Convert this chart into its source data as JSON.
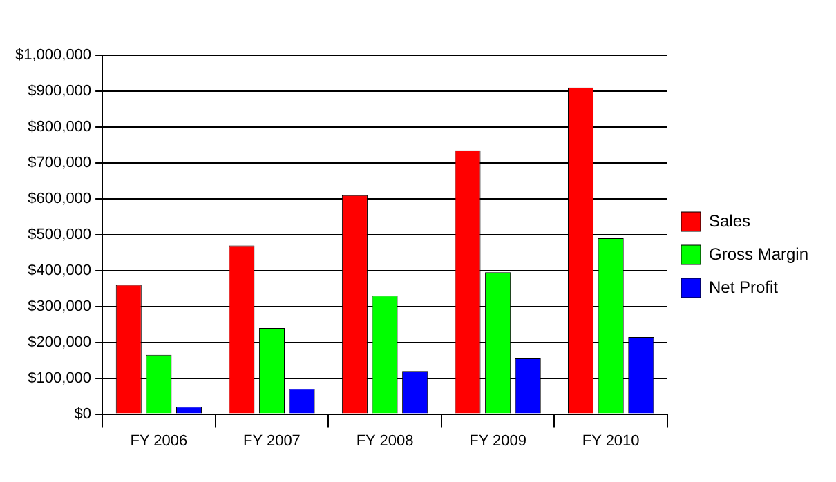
{
  "chart_data": {
    "type": "bar",
    "categories": [
      "FY 2006",
      "FY 2007",
      "FY 2008",
      "FY 2009",
      "FY 2010"
    ],
    "series": [
      {
        "name": "Sales",
        "color": "#ff0000",
        "values": [
          360000,
          470000,
          610000,
          735000,
          910000
        ]
      },
      {
        "name": "Gross Margin",
        "color": "#00ff00",
        "values": [
          165000,
          240000,
          330000,
          395000,
          490000
        ]
      },
      {
        "name": "Net Profit",
        "color": "#0000ff",
        "values": [
          20000,
          70000,
          120000,
          155000,
          215000
        ]
      }
    ],
    "ylim": [
      0,
      1000000
    ],
    "yticks": [
      {
        "value": 0,
        "label": "$0"
      },
      {
        "value": 100000,
        "label": "$100,000"
      },
      {
        "value": 200000,
        "label": "$200,000"
      },
      {
        "value": 300000,
        "label": "$300,000"
      },
      {
        "value": 400000,
        "label": "$400,000"
      },
      {
        "value": 500000,
        "label": "$500,000"
      },
      {
        "value": 600000,
        "label": "$600,000"
      },
      {
        "value": 700000,
        "label": "$700,000"
      },
      {
        "value": 800000,
        "label": "$800,000"
      },
      {
        "value": 900000,
        "label": "$900,000"
      },
      {
        "value": 1000000,
        "label": "$1,000,000"
      }
    ],
    "grid": "y",
    "legend": "right"
  }
}
